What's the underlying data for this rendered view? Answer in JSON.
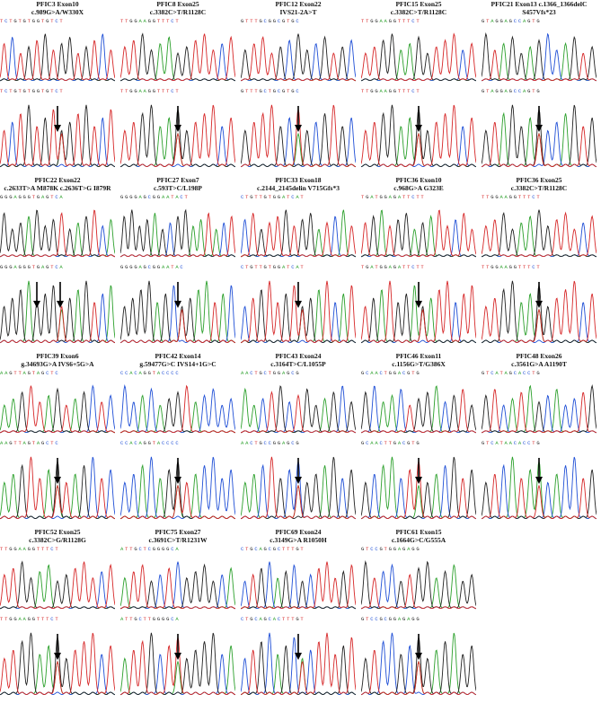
{
  "panels": [
    {
      "id": "PFIC3",
      "exon": "Exon10",
      "mutation": "c.989G>A/W330X",
      "seq_top": "TCTGTGTGGTGTCT",
      "seq_bottom": "TCTGTGTGGTGTCT"
    },
    {
      "id": "PFIC8",
      "exon": "Exon25",
      "mutation": "c.3382C>T/R1128C",
      "seq_top": "TTGGAAGGTTTCT",
      "seq_bottom": "TTGGAAGGTTTCT"
    },
    {
      "id": "PFIC12",
      "exon": "Exon22",
      "mutation": "IVS21-2A>T",
      "seq_top": "GTTTGCGGCGTGC",
      "seq_bottom": "GTTTGCTGCGTGC"
    },
    {
      "id": "PFIC15",
      "exon": "Exon25",
      "mutation": "c.3382C>T/R1128C",
      "seq_top": "TTGGAAGGTTTCT",
      "seq_bottom": "TTGGAAGGTTTCT"
    },
    {
      "id": "PFIC21",
      "exon": "Exon13",
      "mutation": "c.1366_1366delC",
      "mutation2": "S457Vfs*23",
      "seq_top": "GTAGGAGCCAGTG",
      "seq_bottom": "GTAGGAGCCAGTG"
    },
    {
      "id": "PFIC22",
      "exon": "Exon22",
      "mutation": "c.2633T>A M878K c.2636T>G I879R",
      "seq_top": "GGGAGGGTGAGTCA",
      "seq_bottom": "GGGAGGGTGAGTCA"
    },
    {
      "id": "PFIC27",
      "exon": "Exon7",
      "mutation": "c.593T>C/L198P",
      "seq_top": "GGGGAGCGGAATACT",
      "seq_bottom": "GGGGAGCGGAATAC"
    },
    {
      "id": "PFIC33",
      "exon": "Exon18",
      "mutation": "c.2144_2145delin V715Gfs*3",
      "seq_top": "CTGTTGTGGATCAT",
      "seq_bottom": "CTGTTGTGGATCAT"
    },
    {
      "id": "PFIC36",
      "exon": "Exon10",
      "mutation": "c.968G>A G323E",
      "seq_top": "TGATGGAGATTCTT",
      "seq_bottom": "TGATGGAGATTCTT"
    },
    {
      "id": "PFIC36",
      "exon": "Exon25",
      "mutation": "c.3382C>T/R1128C",
      "seq_top": "TTGGAAGGTTTCT",
      "seq_bottom": "TTGGAAGGTTTCT"
    },
    {
      "id": "PFIC39",
      "exon": "Exon6",
      "mutation": "g.34693G>A IVS6+5G>A",
      "seq_top": "AAGTTAGTAGCTC",
      "seq_bottom": "AAGTTAGTAGCTC"
    },
    {
      "id": "PFIC42",
      "exon": "Exon14",
      "mutation": "g.59477G>C IVS14+1G>C",
      "seq_top": "CCACAGGTACCCC",
      "seq_bottom": "CCACAGGTACCCC"
    },
    {
      "id": "PFIC43",
      "exon": "Exon24",
      "mutation": "c.3164T>C/L1055P",
      "seq_top": "AACTGCTGGAGCG",
      "seq_bottom": "AACTGCCGGAGCG"
    },
    {
      "id": "PFIC46",
      "exon": "Exon11",
      "mutation": "c.1156G>T/G386X",
      "seq_top": "GCAACTGGACGTG",
      "seq_bottom": "GCAACTTGACGTG"
    },
    {
      "id": "PFIC48",
      "exon": "Exon26",
      "mutation": "c.3561G>A A1190T",
      "seq_top": "GTCATAGCACCTG",
      "seq_bottom": "GTCATAACACCTG"
    },
    {
      "id": "PFIC52",
      "exon": "Exon25",
      "mutation": "c.3382C>G/R1128G",
      "seq_top": "TTGGAAGGTTTCT",
      "seq_bottom": "TTGGAAGGTTTCT"
    },
    {
      "id": "PFIC75",
      "exon": "Exon27",
      "mutation": "c.3691C>T/R1231W",
      "seq_top": "ATTGCTCGGGGCA",
      "seq_bottom": "ATTGCTTGGGGCA"
    },
    {
      "id": "PFIC69",
      "exon": "Exon24",
      "mutation": "c.3149G>A R1050H",
      "seq_top": "CTGCAGCGCTTTGT",
      "seq_bottom": "CTGCAGCACTTTGT"
    },
    {
      "id": "PFIC61",
      "exon": "Exon15",
      "mutation": "c.1664G>C/G555A",
      "seq_top": "GTCCGTGGAGAGG",
      "seq_bottom": "GTCCGCGGAGAGG"
    }
  ],
  "colors": {
    "A": "#2ca02c",
    "C": "#1f4fd6",
    "G": "#222222",
    "T": "#d62728",
    "arrow": "#000000"
  }
}
